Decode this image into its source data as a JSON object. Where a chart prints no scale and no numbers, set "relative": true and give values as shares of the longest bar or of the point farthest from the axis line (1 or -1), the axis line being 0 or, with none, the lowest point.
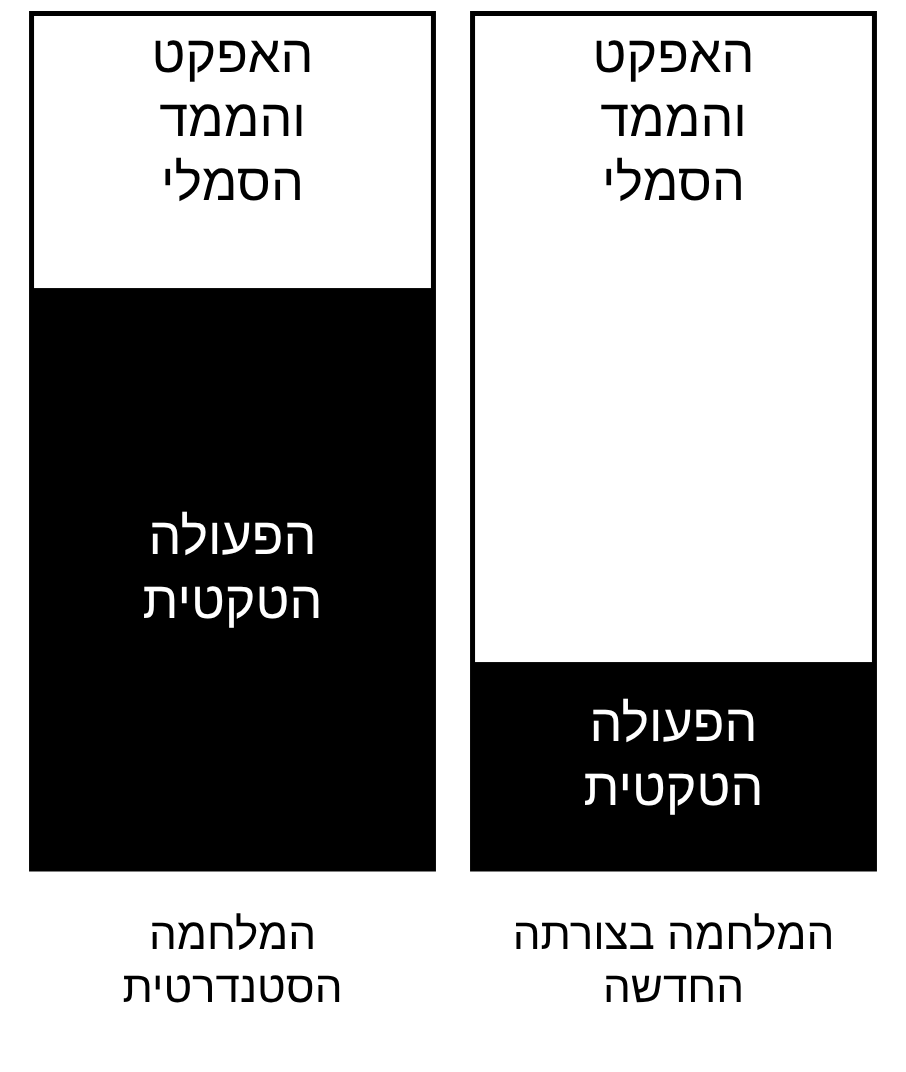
{
  "chart_data": {
    "type": "bar",
    "stacked": true,
    "relative": true,
    "categories": [
      "המלחמה הסטנדרטית",
      "המלחמה בצורתה החדשה"
    ],
    "series": [
      {
        "name": "הפעולה הטקטית",
        "color": "#000000",
        "values": [
          0.68,
          0.24
        ]
      },
      {
        "name": "האפקט והממד הסמלי",
        "color": "#ffffff",
        "values": [
          0.32,
          0.76
        ]
      }
    ]
  }
}
